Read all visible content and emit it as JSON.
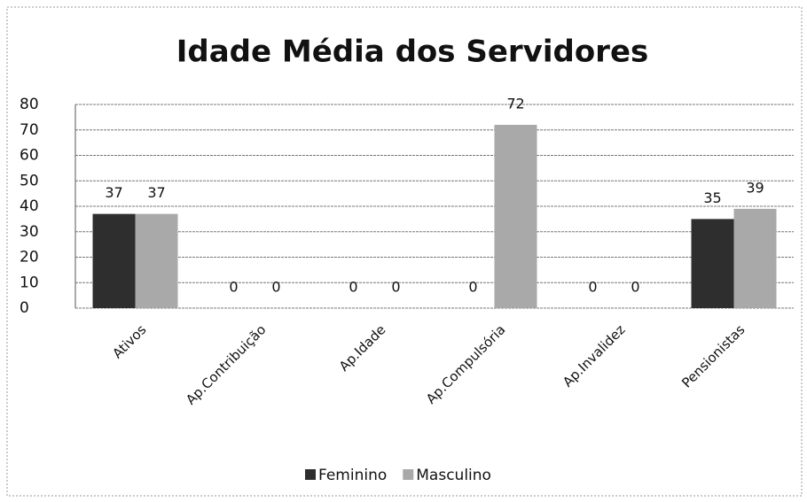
{
  "chart_data": {
    "type": "bar",
    "title": "Idade Média dos Servidores",
    "categories": [
      "Ativos",
      "Ap.Contribuição",
      "Ap.Idade",
      "Ap.Compulsória",
      "Ap.Invalidez",
      "Pensionistas"
    ],
    "series": [
      {
        "name": "Feminino",
        "color": "#2e2e2e",
        "values": [
          37,
          0,
          0,
          0,
          0,
          35
        ]
      },
      {
        "name": "Masculino",
        "color": "#a9a9a9",
        "values": [
          37,
          0,
          0,
          72,
          0,
          39
        ]
      }
    ],
    "ylim": [
      0,
      80
    ],
    "yticks": [
      0,
      10,
      20,
      30,
      40,
      50,
      60,
      70,
      80
    ],
    "grid": true,
    "legend": "bottom"
  }
}
